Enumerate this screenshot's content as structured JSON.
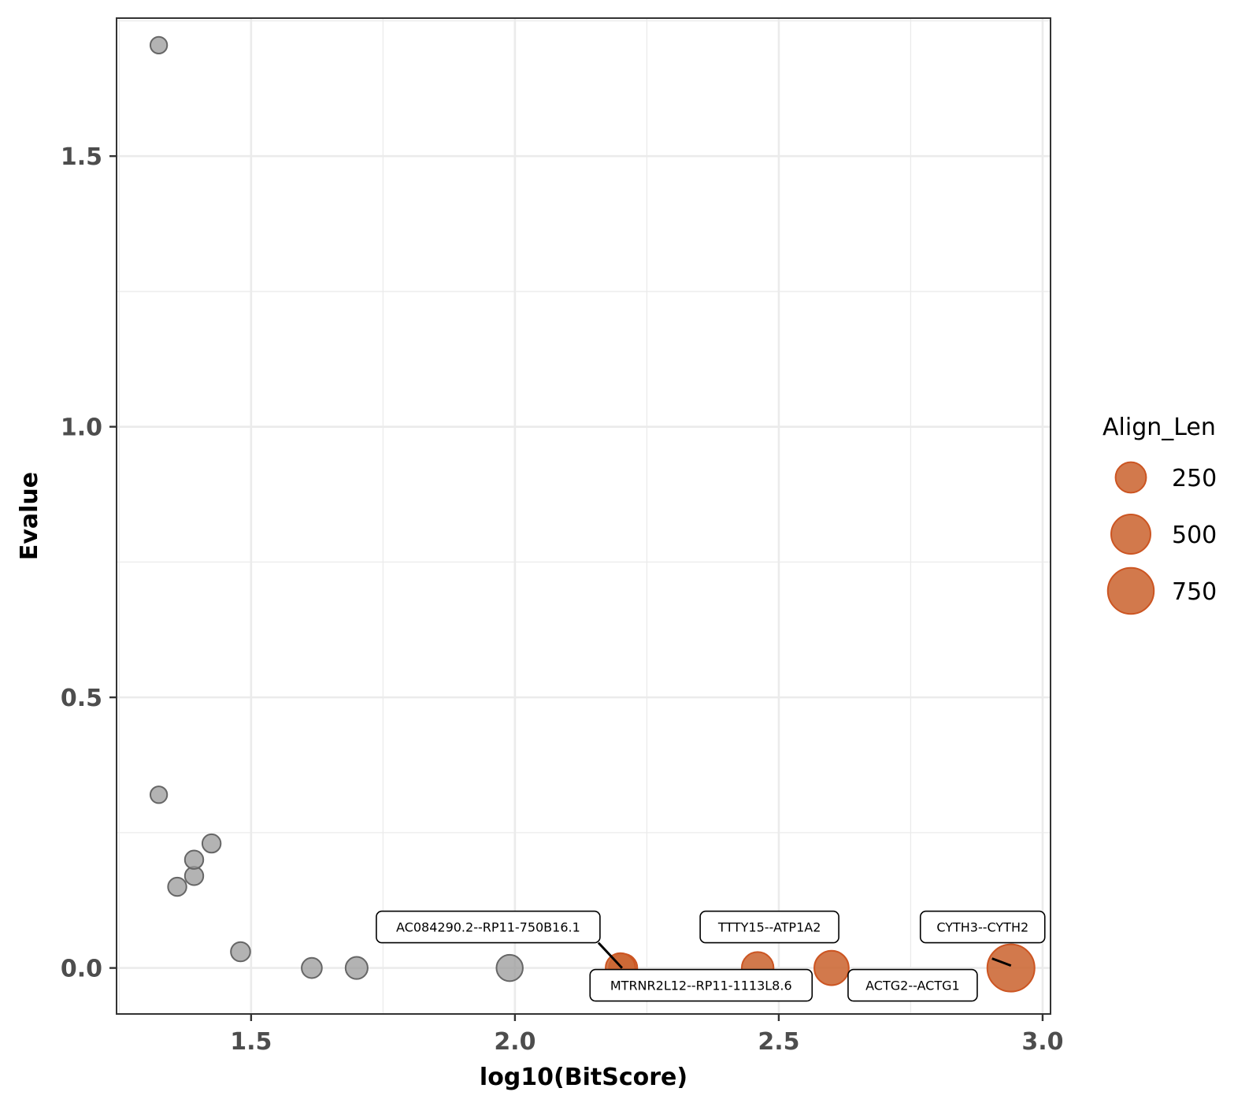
{
  "chart_data": {
    "type": "scatter",
    "xlabel": "log10(BitScore)",
    "ylabel": "Evalue",
    "xlim": [
      1.245,
      3.015
    ],
    "ylim": [
      -0.085,
      1.755
    ],
    "x_ticks": [
      1.5,
      2.0,
      2.5,
      3.0
    ],
    "x_tick_labels": [
      "1.5",
      "2.0",
      "2.5",
      "3.0"
    ],
    "y_ticks": [
      0.0,
      0.5,
      1.0,
      1.5
    ],
    "y_tick_labels": [
      "0.0",
      "0.5",
      "1.0",
      "1.5"
    ],
    "grid": true,
    "size_variable": "Align_Len",
    "legend": {
      "title": "Align_Len",
      "position": "right",
      "entries": [
        {
          "label": "250",
          "value": 250
        },
        {
          "label": "500",
          "value": 500
        },
        {
          "label": "750",
          "value": 750
        }
      ]
    },
    "colors": {
      "highlight": "#cc6633",
      "highlight_dark": "#cc5522",
      "other": "#999999",
      "other_stroke": "#666666"
    },
    "points": [
      {
        "x": 1.325,
        "y": 1.705,
        "align_len": 30,
        "group": "other"
      },
      {
        "x": 1.325,
        "y": 0.32,
        "align_len": 30,
        "group": "other"
      },
      {
        "x": 1.36,
        "y": 0.15,
        "align_len": 45,
        "group": "other"
      },
      {
        "x": 1.392,
        "y": 0.17,
        "align_len": 45,
        "group": "other"
      },
      {
        "x": 1.392,
        "y": 0.2,
        "align_len": 45,
        "group": "other"
      },
      {
        "x": 1.425,
        "y": 0.23,
        "align_len": 45,
        "group": "other"
      },
      {
        "x": 1.48,
        "y": 0.03,
        "align_len": 55,
        "group": "other"
      },
      {
        "x": 1.615,
        "y": 0.0,
        "align_len": 65,
        "group": "other"
      },
      {
        "x": 1.7,
        "y": 0.0,
        "align_len": 90,
        "group": "other"
      },
      {
        "x": 1.99,
        "y": 0.0,
        "align_len": 160,
        "group": "other"
      },
      {
        "x": 2.2,
        "y": 0.0,
        "align_len": 230,
        "group": "highlight"
      },
      {
        "x": 2.205,
        "y": 0.0,
        "align_len": 200,
        "group": "highlight"
      },
      {
        "x": 2.46,
        "y": 0.0,
        "align_len": 280,
        "group": "highlight"
      },
      {
        "x": 2.6,
        "y": 0.0,
        "align_len": 350,
        "group": "highlight"
      },
      {
        "x": 2.94,
        "y": 0.0,
        "align_len": 800,
        "group": "highlight"
      }
    ],
    "annotations": [
      {
        "label": "AC084290.2--RP11-750B16.1",
        "x": 2.2,
        "y": 0.0
      },
      {
        "label": "MTRNR2L12--RP11-1113L8.6",
        "x": 2.205,
        "y": 0.0
      },
      {
        "label": "TTTY15--ATP1A2",
        "x": 2.46,
        "y": 0.0
      },
      {
        "label": "ACTG2--ACTG1",
        "x": 2.6,
        "y": 0.0
      },
      {
        "label": "CYTH3--CYTH2",
        "x": 2.94,
        "y": 0.0
      }
    ]
  }
}
